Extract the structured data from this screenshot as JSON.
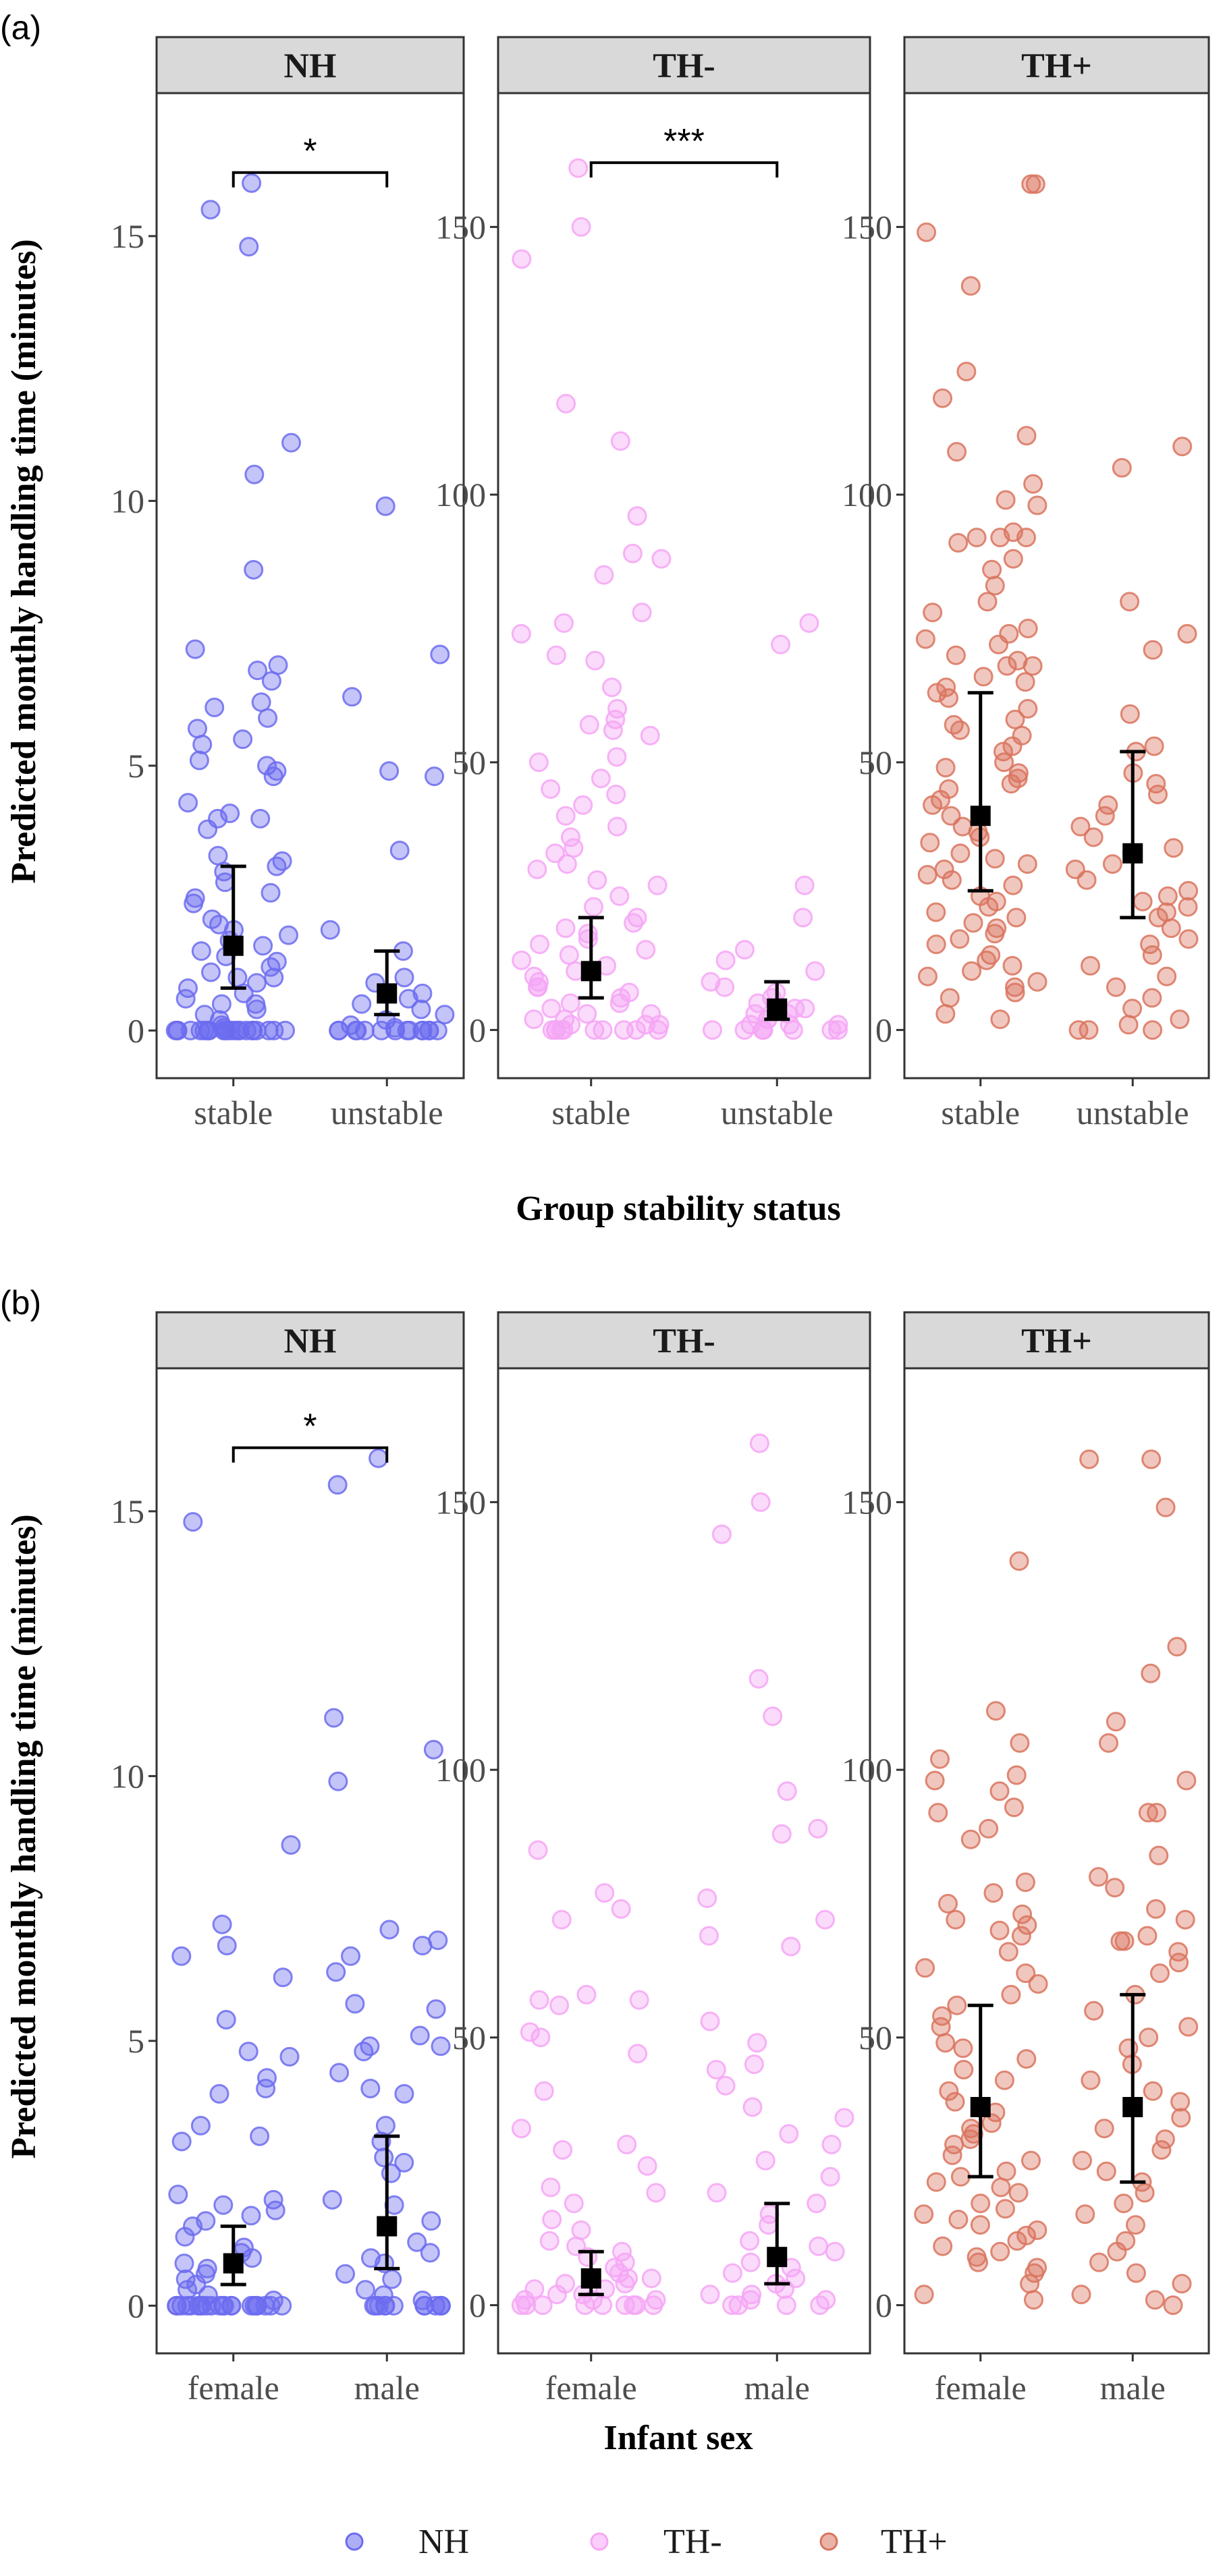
{
  "figure": {
    "ylabel": "Predicted monthly handling time (minutes)",
    "legend": {
      "items": [
        {
          "label": "NH",
          "color": "#6c6cf0"
        },
        {
          "label": "TH-",
          "color": "#f5a6f5"
        },
        {
          "label": "TH+",
          "color": "#d9745e"
        }
      ],
      "placement": "bottom"
    }
  },
  "chart_data": [
    {
      "type": "scatter",
      "tag": "(a)",
      "xlabel": "Group stability status",
      "ylabel": "Predicted monthly handling time (minutes)",
      "categories": [
        "stable",
        "unstable"
      ],
      "facets": [
        {
          "name": "NH",
          "color": "#6c6cf0",
          "ylim": [
            -0.9,
            17.7
          ],
          "yticks": [
            0,
            5,
            10,
            15
          ],
          "significance": {
            "label": "*",
            "y": 16.2
          },
          "groups": [
            {
              "category": "stable",
              "mean": 1.6,
              "ci": [
                0.8,
                3.1
              ],
              "points": [
                16.0,
                15.5,
                14.8,
                11.1,
                10.5,
                8.7,
                7.2,
                6.9,
                6.8,
                6.6,
                6.2,
                6.1,
                5.9,
                5.7,
                5.5,
                5.4,
                5.1,
                5.0,
                4.9,
                4.8,
                4.3,
                4.1,
                4.0,
                4.0,
                3.8,
                3.3,
                3.2,
                3.1,
                3.0,
                2.8,
                2.6,
                2.5,
                2.4,
                2.1,
                2.0,
                1.9,
                1.8,
                1.7,
                1.6,
                1.5,
                1.4,
                1.3,
                1.2,
                1.1,
                1.0,
                1.0,
                0.9,
                0.8,
                0.7,
                0.6,
                0.5,
                0.5,
                0.4,
                0.3,
                0.2,
                0.1,
                0.05,
                0,
                0,
                0,
                0,
                0,
                0,
                0,
                0,
                0,
                0,
                0,
                0,
                0,
                0,
                0,
                0,
                0,
                0,
                0,
                0,
                0,
                0,
                0
              ]
            },
            {
              "category": "unstable",
              "mean": 0.7,
              "ci": [
                0.3,
                1.5
              ],
              "points": [
                9.9,
                7.1,
                6.3,
                4.9,
                4.8,
                3.4,
                1.9,
                1.5,
                1.0,
                0.9,
                0.7,
                0.6,
                0.5,
                0.4,
                0.3,
                0.2,
                0.1,
                0.05,
                0,
                0,
                0,
                0,
                0,
                0,
                0,
                0,
                0,
                0,
                0,
                0,
                0,
                0
              ]
            }
          ]
        },
        {
          "name": "TH-",
          "color": "#f5a6f5",
          "ylim": [
            -9,
            175
          ],
          "yticks": [
            0,
            50,
            100,
            150
          ],
          "significance": {
            "label": "***",
            "y": 162
          },
          "groups": [
            {
              "category": "stable",
              "mean": 11,
              "ci": [
                6,
                21
              ],
              "points": [
                161,
                150,
                144,
                117,
                110,
                96,
                89,
                88,
                85,
                78,
                76,
                74,
                70,
                69,
                64,
                60,
                58,
                57,
                56,
                55,
                51,
                50,
                47,
                45,
                44,
                42,
                40,
                38,
                36,
                34,
                33,
                31,
                30,
                28,
                27,
                25,
                23,
                21,
                20,
                19,
                18,
                17,
                16,
                15,
                14,
                13,
                12,
                11,
                10,
                9,
                8,
                8,
                7,
                6,
                5,
                5,
                4,
                3,
                3,
                2,
                2,
                1,
                1,
                1,
                0,
                0,
                0,
                0,
                0,
                0,
                0,
                0,
                0,
                0
              ]
            },
            {
              "category": "unstable",
              "mean": 4,
              "ci": [
                2,
                9
              ],
              "points": [
                76,
                72,
                27,
                21,
                15,
                13,
                11,
                9,
                8,
                7,
                6,
                5,
                4,
                4,
                3,
                3,
                2,
                2,
                1,
                1,
                1,
                0,
                0,
                0,
                0,
                0,
                0,
                0,
                0
              ]
            }
          ]
        },
        {
          "name": "TH+",
          "color": "#d9745e",
          "ylim": [
            -9,
            175
          ],
          "yticks": [
            0,
            50,
            100,
            150
          ],
          "significance": null,
          "groups": [
            {
              "category": "stable",
              "mean": 40,
              "ci": [
                26,
                63
              ],
              "points": [
                158,
                158,
                149,
                139,
                123,
                118,
                111,
                108,
                102,
                99,
                98,
                93,
                92,
                92,
                92,
                91,
                88,
                86,
                83,
                80,
                78,
                75,
                74,
                73,
                72,
                70,
                69,
                68,
                68,
                66,
                65,
                64,
                63,
                62,
                60,
                58,
                57,
                56,
                55,
                53,
                52,
                50,
                49,
                48,
                47,
                46,
                45,
                43,
                42,
                40,
                38,
                37,
                36,
                35,
                33,
                32,
                31,
                30,
                29,
                28,
                27,
                25,
                24,
                23,
                22,
                21,
                20,
                19,
                18,
                17,
                16,
                14,
                13,
                12,
                11,
                10,
                9,
                8,
                7,
                6,
                3,
                2
              ]
            },
            {
              "category": "unstable",
              "mean": 33,
              "ci": [
                21,
                52
              ],
              "points": [
                109,
                105,
                80,
                74,
                71,
                59,
                53,
                52,
                48,
                46,
                44,
                42,
                40,
                38,
                36,
                34,
                33,
                31,
                30,
                28,
                26,
                25,
                24,
                23,
                22,
                21,
                19,
                17,
                16,
                14,
                12,
                10,
                8,
                6,
                4,
                2,
                1,
                0,
                0,
                0
              ]
            }
          ]
        }
      ]
    },
    {
      "type": "scatter",
      "tag": "(b)",
      "xlabel": "Infant sex",
      "ylabel": "Predicted monthly handling time (minutes)",
      "categories": [
        "female",
        "male"
      ],
      "facets": [
        {
          "name": "NH",
          "color": "#6c6cf0",
          "ylim": [
            -0.9,
            17.7
          ],
          "yticks": [
            0,
            5,
            10,
            15
          ],
          "significance": {
            "label": "*",
            "y": 16.2
          },
          "groups": [
            {
              "category": "female",
              "mean": 0.8,
              "ci": [
                0.4,
                1.5
              ],
              "points": [
                14.8,
                8.7,
                7.2,
                6.8,
                6.6,
                6.2,
                5.4,
                4.8,
                4.7,
                4.3,
                4.1,
                4.0,
                3.4,
                3.2,
                3.1,
                2.1,
                2.0,
                1.9,
                1.8,
                1.7,
                1.6,
                1.5,
                1.3,
                1.1,
                1.0,
                0.9,
                0.8,
                0.7,
                0.6,
                0.5,
                0.4,
                0.3,
                0.2,
                0.1,
                0,
                0,
                0,
                0,
                0,
                0,
                0,
                0,
                0,
                0,
                0,
                0,
                0,
                0,
                0,
                0,
                0,
                0,
                0,
                0,
                0,
                0
              ]
            },
            {
              "category": "male",
              "mean": 1.5,
              "ci": [
                0.7,
                3.2
              ],
              "points": [
                16.0,
                15.5,
                11.1,
                10.5,
                9.9,
                7.1,
                6.9,
                6.8,
                6.6,
                6.3,
                5.7,
                5.6,
                5.1,
                4.9,
                4.9,
                4.8,
                4.4,
                4.1,
                4.0,
                3.4,
                3.1,
                2.8,
                2.7,
                2.5,
                2.0,
                1.9,
                1.6,
                1.2,
                1.0,
                0.9,
                0.8,
                0.6,
                0.5,
                0.3,
                0.2,
                0.1,
                0,
                0,
                0,
                0,
                0,
                0,
                0,
                0,
                0,
                0,
                0,
                0
              ]
            }
          ]
        },
        {
          "name": "TH-",
          "color": "#f5a6f5",
          "ylim": [
            -9,
            175
          ],
          "yticks": [
            0,
            50,
            100,
            150
          ],
          "significance": null,
          "groups": [
            {
              "category": "female",
              "mean": 5,
              "ci": [
                2,
                10
              ],
              "points": [
                85,
                77,
                74,
                72,
                58,
                57,
                57,
                56,
                51,
                50,
                47,
                40,
                33,
                30,
                29,
                26,
                22,
                21,
                19,
                16,
                14,
                12,
                11,
                10,
                9,
                8,
                7,
                6,
                5,
                5,
                4,
                4,
                3,
                3,
                2,
                2,
                1,
                1,
                1,
                0,
                0,
                0,
                0,
                0,
                0,
                0,
                0,
                0
              ]
            },
            {
              "category": "male",
              "mean": 9,
              "ci": [
                4,
                19
              ],
              "points": [
                161,
                150,
                144,
                117,
                110,
                96,
                89,
                88,
                76,
                72,
                69,
                67,
                53,
                49,
                45,
                44,
                41,
                37,
                35,
                32,
                30,
                27,
                24,
                21,
                19,
                17,
                15,
                12,
                11,
                10,
                8,
                7,
                6,
                5,
                4,
                3,
                2,
                2,
                1,
                1,
                0,
                0,
                0,
                0
              ]
            }
          ]
        },
        {
          "name": "TH+",
          "color": "#d9745e",
          "ylim": [
            -9,
            175
          ],
          "yticks": [
            0,
            50,
            100,
            150
          ],
          "significance": null,
          "groups": [
            {
              "category": "female",
              "mean": 37,
              "ci": [
                24,
                56
              ],
              "points": [
                139,
                111,
                105,
                102,
                99,
                98,
                96,
                93,
                92,
                89,
                87,
                79,
                77,
                75,
                73,
                72,
                71,
                70,
                69,
                66,
                63,
                62,
                60,
                58,
                56,
                54,
                52,
                49,
                48,
                46,
                44,
                42,
                40,
                38,
                36,
                34,
                33,
                32,
                31,
                30,
                28,
                27,
                25,
                24,
                23,
                22,
                21,
                19,
                18,
                17,
                16,
                15,
                14,
                13,
                12,
                11,
                10,
                9,
                8,
                7,
                6,
                4,
                2,
                1
              ]
            },
            {
              "category": "male",
              "mean": 37,
              "ci": [
                23,
                58
              ],
              "points": [
                158,
                158,
                149,
                123,
                118,
                109,
                105,
                98,
                92,
                92,
                84,
                80,
                78,
                74,
                72,
                69,
                68,
                68,
                66,
                64,
                62,
                58,
                55,
                52,
                50,
                48,
                45,
                42,
                40,
                38,
                35,
                33,
                31,
                29,
                27,
                25,
                23,
                21,
                19,
                17,
                15,
                12,
                10,
                8,
                6,
                4,
                2,
                1,
                0
              ]
            }
          ]
        }
      ]
    }
  ]
}
